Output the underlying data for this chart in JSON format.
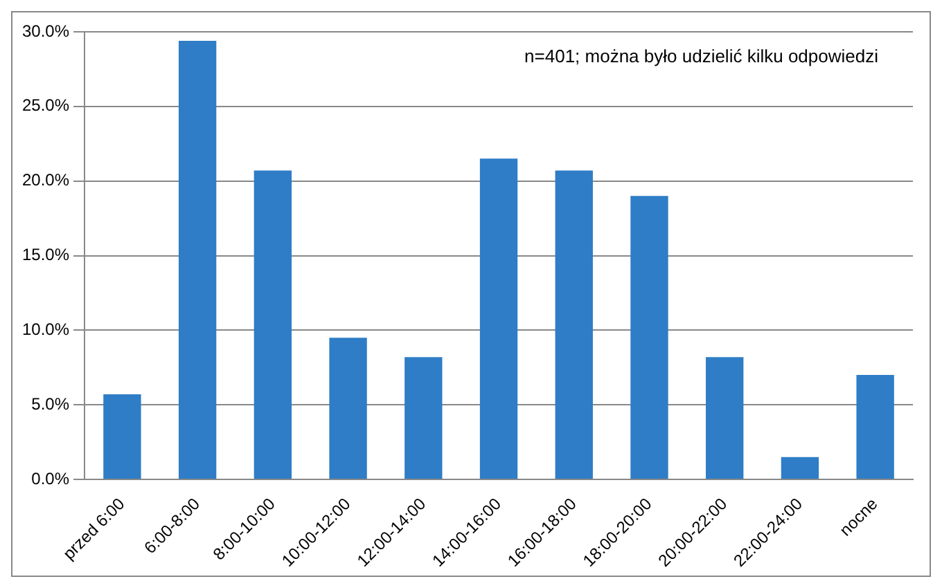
{
  "chart_data": {
    "type": "bar",
    "categories": [
      "przed 6:00",
      "6:00-8:00",
      "8:00-10:00",
      "10:00-12:00",
      "12:00-14:00",
      "14:00-16:00",
      "16:00-18:00",
      "18:00-20:00",
      "20:00-22:00",
      "22:00-24:00",
      "nocne"
    ],
    "values": [
      5.7,
      29.4,
      20.7,
      9.5,
      8.2,
      21.5,
      20.7,
      19.0,
      8.2,
      1.5,
      7.0
    ],
    "color": "#2e7dc6",
    "ylim": [
      0,
      30
    ],
    "yticks": [
      {
        "value": 0,
        "label": "0.0%"
      },
      {
        "value": 5,
        "label": "5.0%"
      },
      {
        "value": 10,
        "label": "10.0%"
      },
      {
        "value": 15,
        "label": "15.0%"
      },
      {
        "value": 20,
        "label": "20.0%"
      },
      {
        "value": 25,
        "label": "25.0%"
      },
      {
        "value": 30,
        "label": "30.0%"
      }
    ],
    "grid": "y",
    "annotations": [
      "n=401; można było udzielić kilku odpowiedzi"
    ]
  }
}
